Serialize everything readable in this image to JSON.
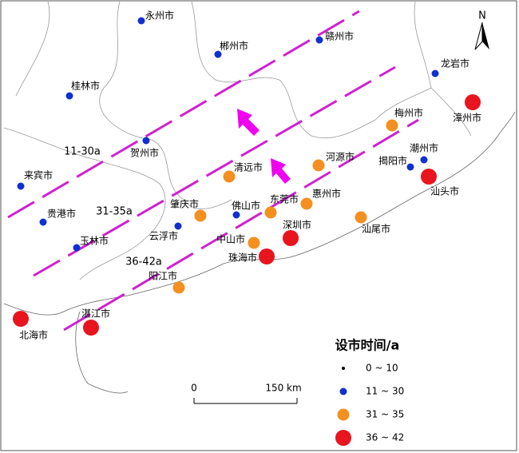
{
  "map": {
    "north": "N",
    "zones": [
      "11-30a",
      "31-35a",
      "36-42a"
    ],
    "cities": [
      {
        "name": "永州市",
        "color": "#1030d0"
      },
      {
        "name": "郴州市",
        "color": "#1030d0"
      },
      {
        "name": "赣州市",
        "color": "#1030d0"
      },
      {
        "name": "桂林市",
        "color": "#1030d0"
      },
      {
        "name": "龙岩市",
        "color": "#1030d0"
      },
      {
        "name": "贺州市",
        "color": "#1030d0"
      },
      {
        "name": "来宾市",
        "color": "#1030d0"
      },
      {
        "name": "贵港市",
        "color": "#1030d0"
      },
      {
        "name": "玉林市",
        "color": "#1030d0"
      },
      {
        "name": "云浮市",
        "color": "#1030d0"
      },
      {
        "name": "佛山市",
        "color": "#1030d0"
      },
      {
        "name": "潮州市",
        "color": "#1030d0"
      },
      {
        "name": "揭阳市",
        "color": "#1030d0"
      },
      {
        "name": "梅州市",
        "color": "#f39020"
      },
      {
        "name": "河源市",
        "color": "#f39020"
      },
      {
        "name": "清远市",
        "color": "#f39020"
      },
      {
        "name": "肇庆市",
        "color": "#f39020"
      },
      {
        "name": "东莞市",
        "color": "#f39020"
      },
      {
        "name": "惠州市",
        "color": "#f39020"
      },
      {
        "name": "汕尾市",
        "color": "#f39020"
      },
      {
        "name": "中山市",
        "color": "#f39020"
      },
      {
        "name": "阳江市",
        "color": "#f39020"
      },
      {
        "name": "漳州市",
        "color": "#e8141e"
      },
      {
        "name": "汕头市",
        "color": "#e8141e"
      },
      {
        "name": "深圳市",
        "color": "#e8141e"
      },
      {
        "name": "珠海市",
        "color": "#e8141e"
      },
      {
        "name": "湛江市",
        "color": "#e8141e"
      },
      {
        "name": "北海市",
        "color": "#e8141e"
      }
    ],
    "scale": {
      "start": "0",
      "end": "150 km"
    },
    "legend": {
      "title": "设市时间/a",
      "items": [
        {
          "label": "0 ~ 10",
          "color": "#000000"
        },
        {
          "label": "11 ~ 30",
          "color": "#1030d0"
        },
        {
          "label": "31 ~ 35",
          "color": "#f39020"
        },
        {
          "label": "36 ~ 42",
          "color": "#e8141e"
        }
      ]
    }
  }
}
